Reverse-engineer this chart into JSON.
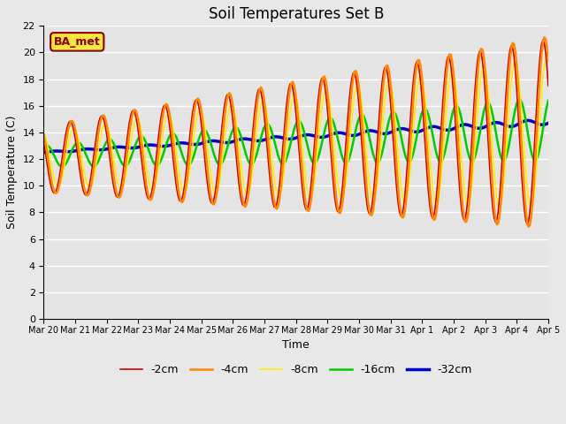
{
  "title": "Soil Temperatures Set B",
  "xlabel": "Time",
  "ylabel": "Soil Temperature (C)",
  "annotation": "BA_met",
  "ylim": [
    0,
    22
  ],
  "yticks": [
    0,
    2,
    4,
    6,
    8,
    10,
    12,
    14,
    16,
    18,
    20,
    22
  ],
  "n_days": 16,
  "colors": {
    "-2cm": "#cc0000",
    "-4cm": "#ff8800",
    "-8cm": "#ffee00",
    "-16cm": "#00cc00",
    "-32cm": "#0000cc"
  },
  "line_widths": {
    "-2cm": 1.2,
    "-4cm": 1.8,
    "-8cm": 1.2,
    "-16cm": 1.8,
    "-32cm": 2.5
  },
  "legend_labels": [
    "-2cm",
    "-4cm",
    "-8cm",
    "-16cm",
    "-32cm"
  ],
  "figure_bg": "#e8e8e8",
  "plot_bg": "#e4e4e4",
  "grid_color": "#ffffff",
  "title_fontsize": 12,
  "axis_label_fontsize": 9,
  "tick_fontsize": 8,
  "xtick_fontsize": 7,
  "annotation_bg": "#f5e642",
  "annotation_edge": "#8b0000",
  "annotation_color": "#8b0000",
  "annotation_fontsize": 9,
  "params": {
    "-2cm": {
      "base_s": 12.0,
      "base_e": 14.0,
      "amp_s": 2.5,
      "amp_e": 7.0,
      "phase": 0.0
    },
    "-4cm": {
      "base_s": 12.0,
      "base_e": 14.0,
      "amp_s": 2.5,
      "amp_e": 7.2,
      "phase": 1.2
    },
    "-8cm": {
      "base_s": 12.0,
      "base_e": 14.0,
      "amp_s": 2.0,
      "amp_e": 5.8,
      "phase": 2.8
    },
    "-16cm": {
      "base_s": 12.2,
      "base_e": 14.3,
      "amp_s": 0.8,
      "amp_e": 2.4,
      "phase": 6.0
    },
    "-32cm": {
      "base_s": 12.5,
      "base_e": 14.8,
      "amp_s": 0.05,
      "amp_e": 0.2,
      "phase": 12.0
    }
  }
}
